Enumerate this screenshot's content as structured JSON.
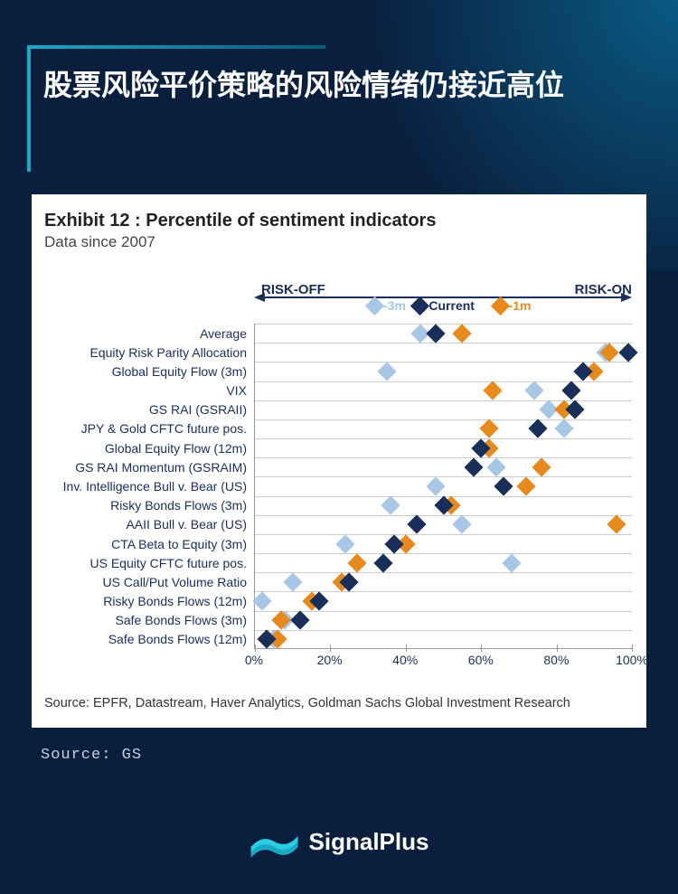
{
  "page": {
    "title": "股票风险平价策略的风险情绪仍接近高位",
    "outer_source": "Source: GS",
    "logo_text": "SignalPlus",
    "bg_color": "#0a1e3d",
    "accent_color": "#1ba8c4"
  },
  "chart": {
    "type": "scatter",
    "title": "Exhibit 12 : Percentile of sentiment indicators",
    "subtitle": "Data since 2007",
    "risk_off_label": "RISK-OFF",
    "risk_on_label": "RISK-ON",
    "source": "Source: EPFR, Datastream, Haver Analytics, Goldman Sachs Global Investment Research",
    "background_color": "#ffffff",
    "grid_color": "#cccccc",
    "label_color": "#1a2e5a",
    "xlim": [
      0,
      100
    ],
    "xtick_step": 20,
    "xtick_labels": [
      "0%",
      "20%",
      "40%",
      "60%",
      "80%",
      "100%"
    ],
    "marker_size": 15,
    "categories": [
      "Average",
      "Equity Risk Parity Allocation",
      "Global Equity Flow (3m)",
      "VIX",
      "GS RAI (GSRAII)",
      "JPY & Gold CFTC future pos.",
      "Global Equity Flow (12m)",
      "GS RAI Momentum (GSRAIM)",
      "Inv. Intelligence Bull v. Bear (US)",
      "Risky Bonds Flows (3m)",
      "AAII Bull v. Bear (US)",
      "CTA Beta to Equity (3m)",
      "US Equity CFTC future pos.",
      "US Call/Put Volume Ratio",
      "Risky Bonds Flows (12m)",
      "Safe Bonds Flows (3m)",
      "Safe Bonds Flows (12m)"
    ],
    "series": [
      {
        "name": "Current",
        "label": "Current",
        "color": "#1a2e5a",
        "legend_x": 42,
        "values": [
          48,
          99,
          87,
          84,
          85,
          75,
          60,
          58,
          66,
          50,
          43,
          37,
          34,
          25,
          17,
          12,
          3
        ]
      },
      {
        "name": "m1",
        "label": "-1m",
        "color": "#e68a1e",
        "legend_x": 63,
        "values": [
          55,
          94,
          90,
          63,
          82,
          62,
          62,
          76,
          72,
          52,
          96,
          40,
          27,
          23,
          15,
          7,
          6
        ]
      },
      {
        "name": "m3",
        "label": "-3m",
        "color": "#a8c6e6",
        "legend_x": 30,
        "values": [
          44,
          93,
          35,
          74,
          78,
          82,
          60,
          64,
          48,
          36,
          55,
          24,
          68,
          10,
          2,
          8,
          5
        ]
      }
    ]
  }
}
